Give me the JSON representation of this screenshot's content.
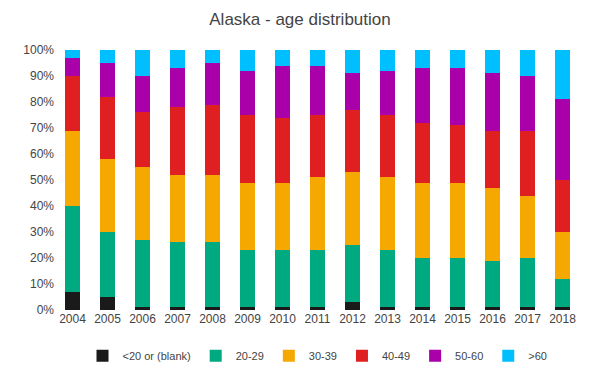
{
  "chart_data": {
    "type": "bar",
    "title": "Alaska - age distribution",
    "stacked": true,
    "categories": [
      "2004",
      "2005",
      "2006",
      "2007",
      "2008",
      "2009",
      "2010",
      "2011",
      "2012",
      "2013",
      "2014",
      "2015",
      "2016",
      "2017",
      "2018"
    ],
    "series": [
      {
        "name": "<20 or (blank)",
        "color": "#1a1a1a",
        "values": [
          7,
          5,
          1,
          1,
          1,
          1,
          1,
          1,
          3,
          1,
          1,
          1,
          1,
          1,
          1
        ]
      },
      {
        "name": "20-29",
        "color": "#00aa80",
        "values": [
          33,
          25,
          26,
          25,
          25,
          22,
          22,
          22,
          22,
          22,
          19,
          19,
          18,
          19,
          11
        ]
      },
      {
        "name": "30-39",
        "color": "#f5a800",
        "values": [
          29,
          28,
          28,
          26,
          26,
          26,
          26,
          28,
          28,
          28,
          29,
          29,
          28,
          24,
          18
        ]
      },
      {
        "name": "40-49",
        "color": "#e02020",
        "values": [
          21,
          24,
          21,
          26,
          27,
          26,
          25,
          24,
          24,
          24,
          23,
          22,
          22,
          25,
          20
        ]
      },
      {
        "name": "50-60",
        "color": "#aa00aa",
        "values": [
          7,
          13,
          14,
          15,
          16,
          17,
          20,
          19,
          14,
          17,
          21,
          22,
          22,
          21,
          31
        ]
      },
      {
        "name": ">60",
        "color": "#00bfff",
        "values": [
          3,
          5,
          10,
          7,
          5,
          8,
          6,
          6,
          9,
          8,
          7,
          7,
          9,
          10,
          19
        ]
      }
    ],
    "ylim": [
      0,
      100
    ],
    "yticks": [
      {
        "value": 0,
        "label": "0%"
      },
      {
        "value": 10,
        "label": "10%"
      },
      {
        "value": 20,
        "label": "20%"
      },
      {
        "value": 30,
        "label": "30%"
      },
      {
        "value": 40,
        "label": "40%"
      },
      {
        "value": 50,
        "label": "50%"
      },
      {
        "value": 60,
        "label": "60%"
      },
      {
        "value": 70,
        "label": "70%"
      },
      {
        "value": 80,
        "label": "80%"
      },
      {
        "value": 90,
        "label": "90%"
      },
      {
        "value": 100,
        "label": "100%"
      }
    ],
    "grid": false,
    "legend": "bottom"
  }
}
